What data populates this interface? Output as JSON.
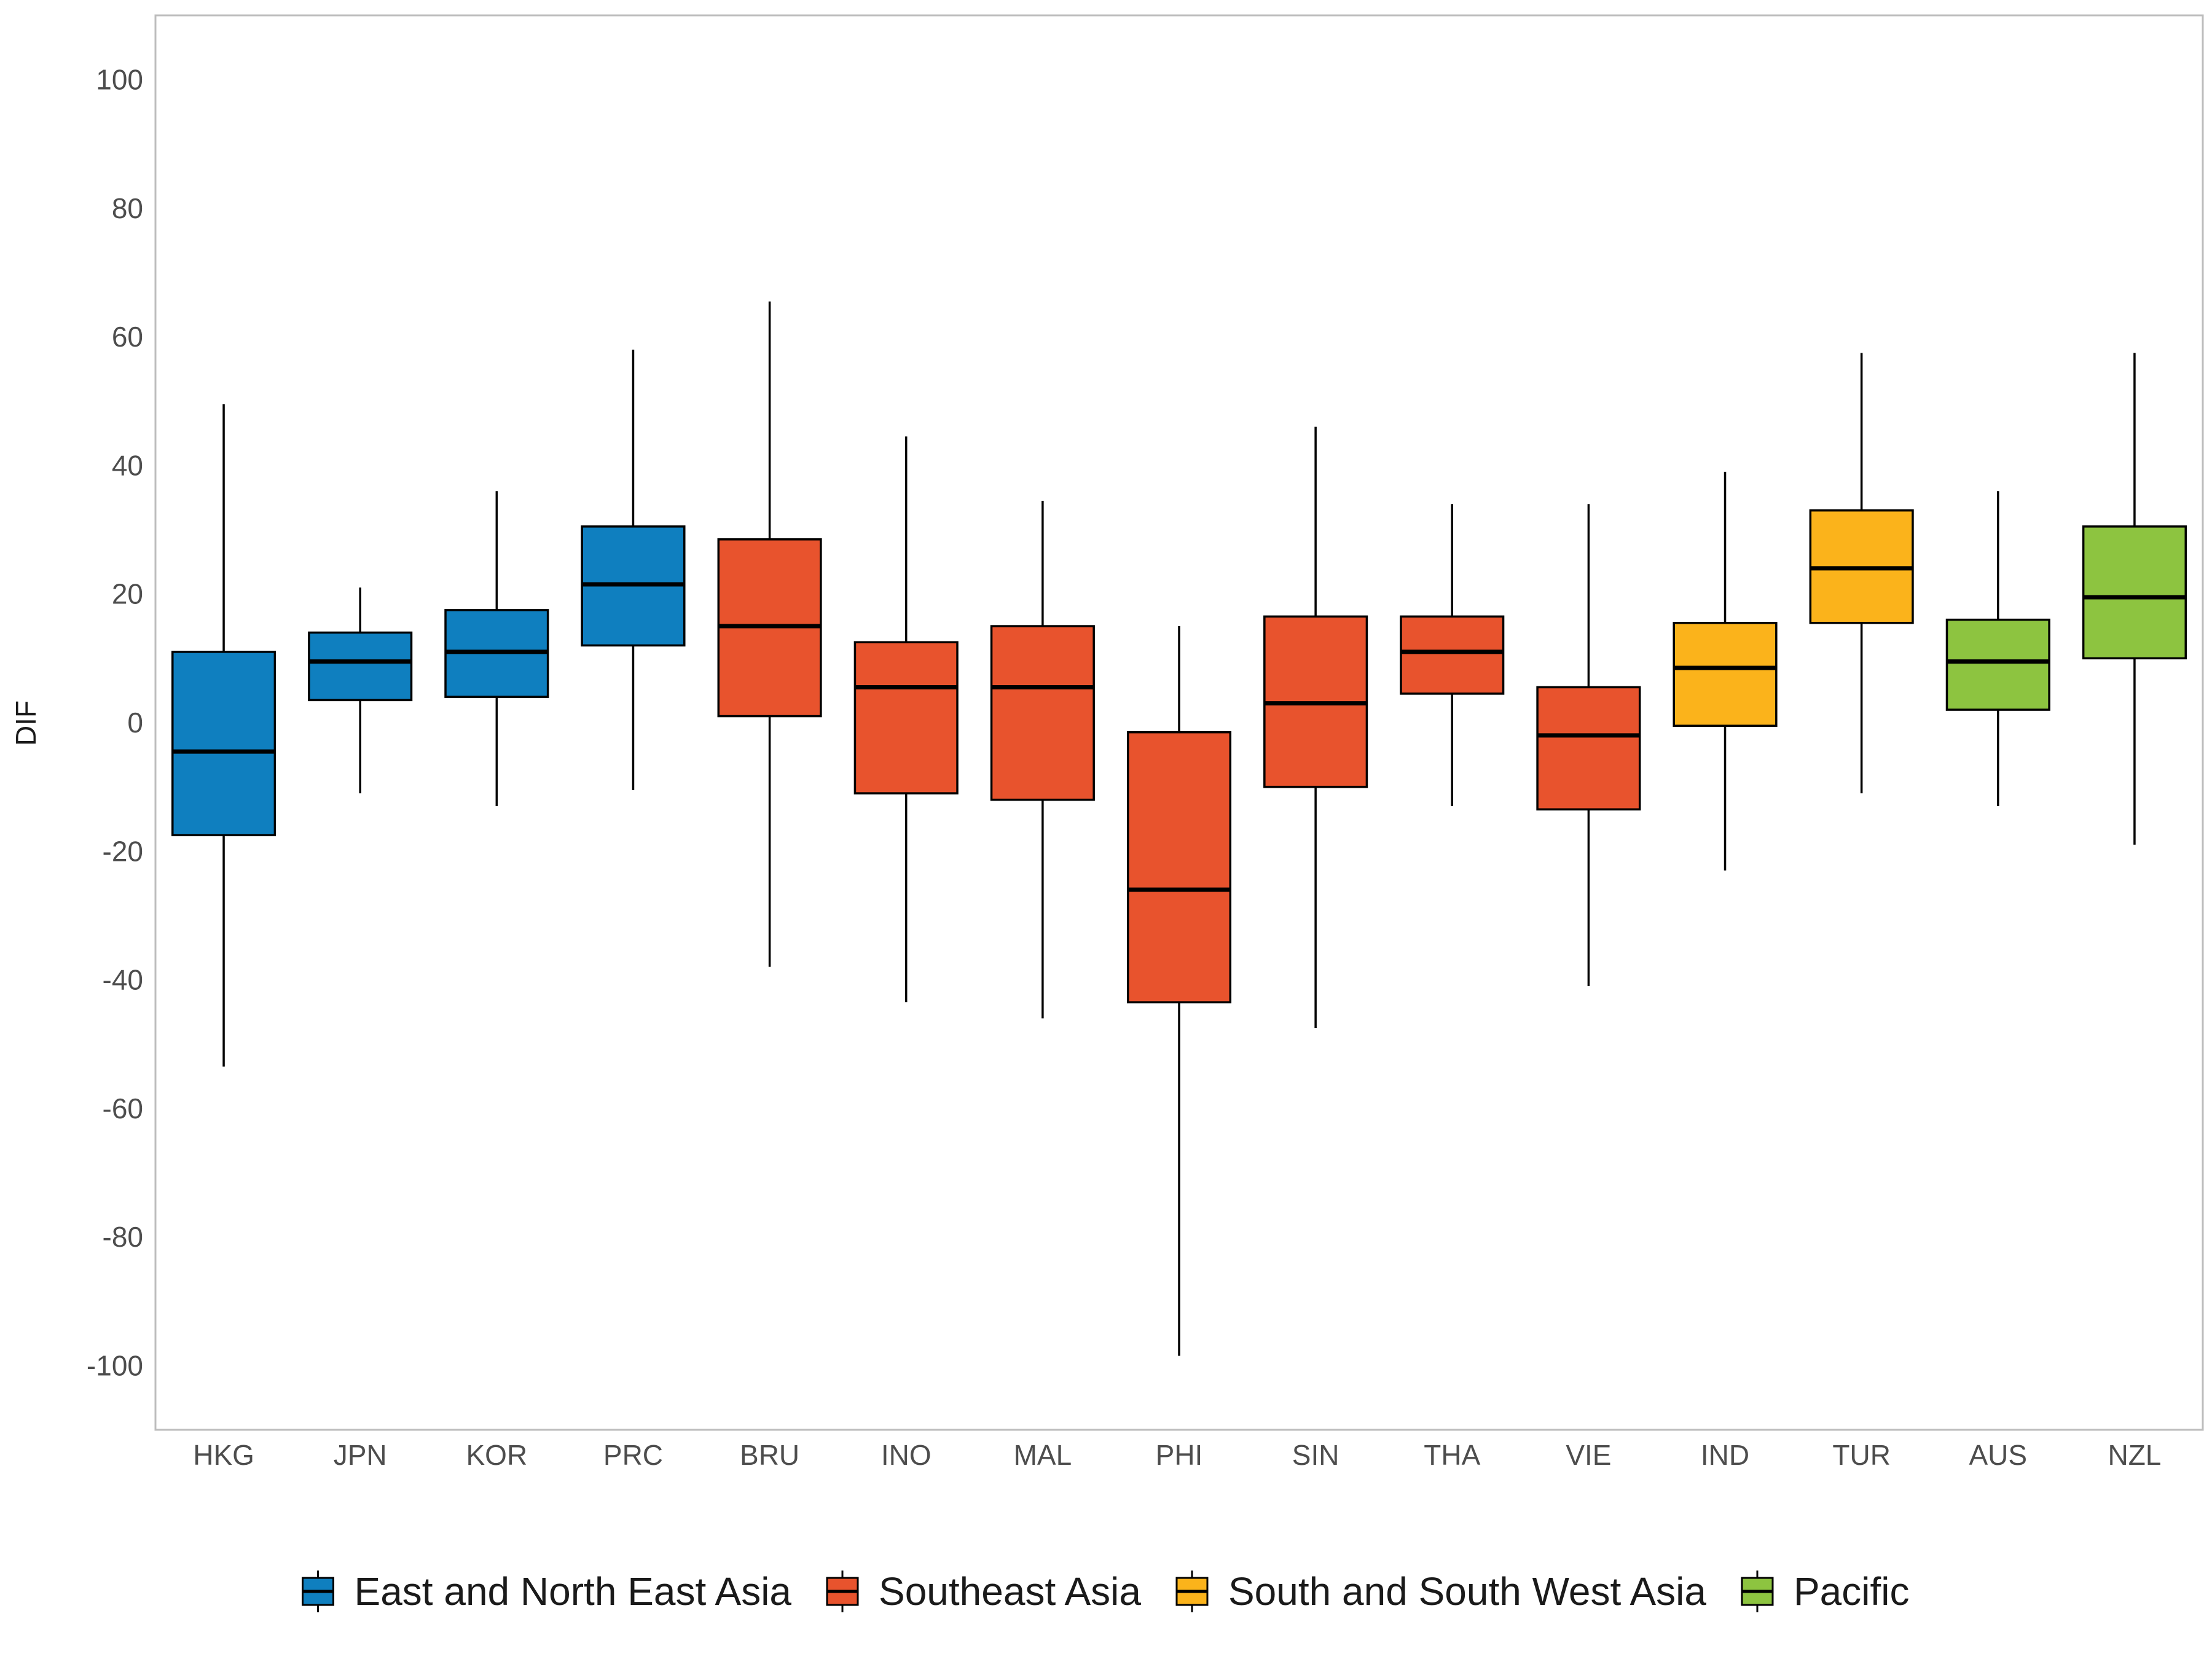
{
  "chart_data": {
    "type": "boxplot",
    "ylabel": "DIF",
    "xlabel": "",
    "ylim": [
      -110,
      110
    ],
    "yticks": [
      100,
      80,
      60,
      40,
      20,
      0,
      -20,
      -40,
      -60,
      -80,
      -100
    ],
    "grid": false,
    "legend_position": "bottom",
    "groups": [
      {
        "name": "East and North East Asia",
        "color": "#0F7FBF"
      },
      {
        "name": "Southeast Asia",
        "color": "#E8532D"
      },
      {
        "name": "South and South West Asia",
        "color": "#FBB31B"
      },
      {
        "name": "Pacific",
        "color": "#8DC440"
      }
    ],
    "categories": [
      "HKG",
      "JPN",
      "KOR",
      "PRC",
      "BRU",
      "INO",
      "MAL",
      "PHI",
      "SIN",
      "THA",
      "VIE",
      "IND",
      "TUR",
      "AUS",
      "NZL"
    ],
    "boxes": [
      {
        "label": "HKG",
        "group": 0,
        "min": -53.5,
        "q1": -17.5,
        "median": -4.5,
        "q3": 11,
        "max": 49.5
      },
      {
        "label": "JPN",
        "group": 0,
        "min": -11,
        "q1": 3.5,
        "median": 9.5,
        "q3": 14,
        "max": 21
      },
      {
        "label": "KOR",
        "group": 0,
        "min": -13,
        "q1": 4,
        "median": 11,
        "q3": 17.5,
        "max": 36
      },
      {
        "label": "PRC",
        "group": 0,
        "min": -10.5,
        "q1": 12,
        "median": 21.5,
        "q3": 30.5,
        "max": 58
      },
      {
        "label": "BRU",
        "group": 1,
        "min": -38,
        "q1": 1,
        "median": 15,
        "q3": 28.5,
        "max": 65.5
      },
      {
        "label": "INO",
        "group": 1,
        "min": -43.5,
        "q1": -11,
        "median": 5.5,
        "q3": 12.5,
        "max": 44.5
      },
      {
        "label": "MAL",
        "group": 1,
        "min": -46,
        "q1": -12,
        "median": 5.5,
        "q3": 15,
        "max": 34.5
      },
      {
        "label": "PHI",
        "group": 1,
        "min": -98.5,
        "q1": -43.5,
        "median": -26,
        "q3": -1.5,
        "max": 15
      },
      {
        "label": "SIN",
        "group": 1,
        "min": -47.5,
        "q1": -10,
        "median": 3,
        "q3": 16.5,
        "max": 46
      },
      {
        "label": "THA",
        "group": 1,
        "min": -13,
        "q1": 4.5,
        "median": 11,
        "q3": 16.5,
        "max": 34
      },
      {
        "label": "VIE",
        "group": 1,
        "min": -41,
        "q1": -13.5,
        "median": -2,
        "q3": 5.5,
        "max": 34
      },
      {
        "label": "IND",
        "group": 2,
        "min": -23,
        "q1": -0.5,
        "median": 8.5,
        "q3": 15.5,
        "max": 39
      },
      {
        "label": "TUR",
        "group": 2,
        "min": -11,
        "q1": 15.5,
        "median": 24,
        "q3": 33,
        "max": 57.5
      },
      {
        "label": "AUS",
        "group": 3,
        "min": -13,
        "q1": 2,
        "median": 9.5,
        "q3": 16,
        "max": 36
      },
      {
        "label": "NZL",
        "group": 3,
        "min": -19,
        "q1": 10,
        "median": 19.5,
        "q3": 30.5,
        "max": 57.5
      }
    ]
  }
}
